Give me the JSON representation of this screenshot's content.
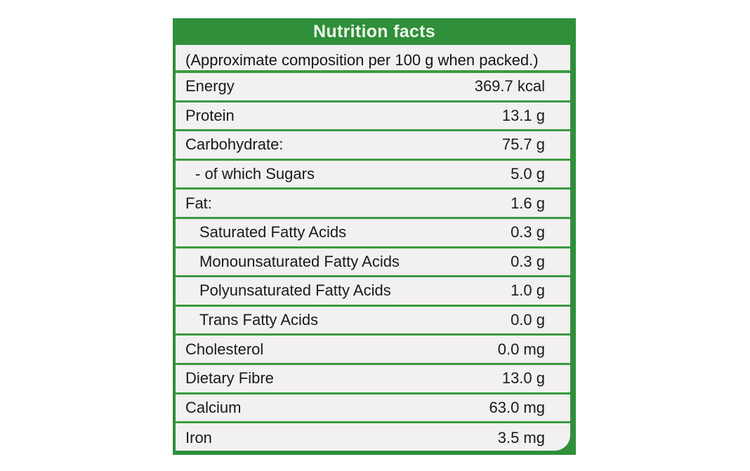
{
  "label": {
    "title": "Nutrition facts",
    "subtitle": "(Approximate composition per 100 g when packed.)",
    "rows": [
      {
        "name": "Energy",
        "value": "369.7 kcal"
      },
      {
        "name": "Protein",
        "value": "13.1 g"
      },
      {
        "name": "Carbohydrate:",
        "value": "75.7 g"
      },
      {
        "name": "- of which Sugars",
        "value": "5.0 g"
      },
      {
        "name": "Fat:",
        "value": "1.6 g"
      },
      {
        "name": "Saturated Fatty Acids",
        "value": "0.3 g"
      },
      {
        "name": "Monounsaturated Fatty Acids",
        "value": "0.3 g"
      },
      {
        "name": "Polyunsaturated Fatty Acids",
        "value": "1.0 g"
      },
      {
        "name": "Trans Fatty Acids",
        "value": "0.0 g"
      },
      {
        "name": "Cholesterol",
        "value": "0.0 mg"
      },
      {
        "name": "Dietary Fibre",
        "value": "13.0 g"
      },
      {
        "name": "Calcium",
        "value": "63.0 mg"
      },
      {
        "name": "Iron",
        "value": "3.5 mg"
      }
    ],
    "colors": {
      "band": "#2f8f3a",
      "panel": "#f2f0f1",
      "rule": "#3b9a3f"
    }
  }
}
